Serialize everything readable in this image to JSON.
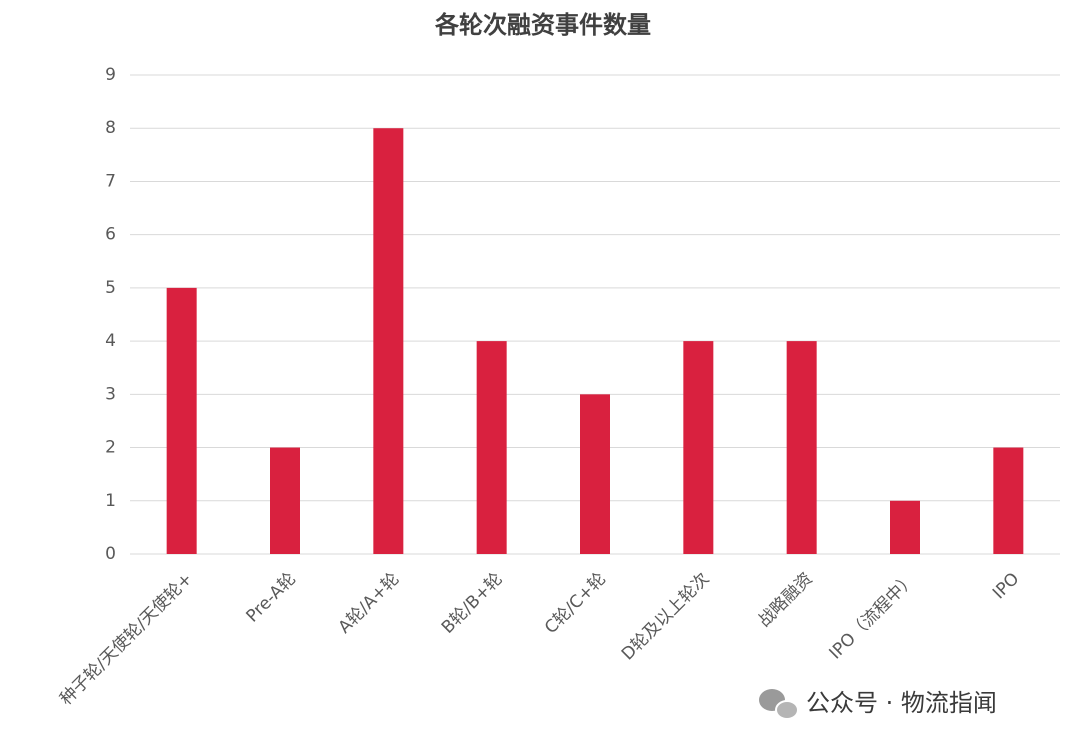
{
  "chart_data": {
    "type": "bar",
    "title": "各轮次融资事件数量",
    "categories": [
      "种子轮/天使轮/天使轮+",
      "Pre-A轮",
      "A轮/A+轮",
      "B轮/B+轮",
      "C轮/C+轮",
      "D轮及以上轮次",
      "战略融资",
      "IPO（流程中）",
      "IPO"
    ],
    "values": [
      5,
      2,
      8,
      4,
      3,
      4,
      4,
      1,
      2
    ],
    "color": "#d9213f",
    "ylim": [
      0,
      9
    ],
    "yticks": [
      0,
      1,
      2,
      3,
      4,
      5,
      6,
      7,
      8,
      9
    ],
    "grid": true
  },
  "footer": "公众号 · 物流指闻"
}
